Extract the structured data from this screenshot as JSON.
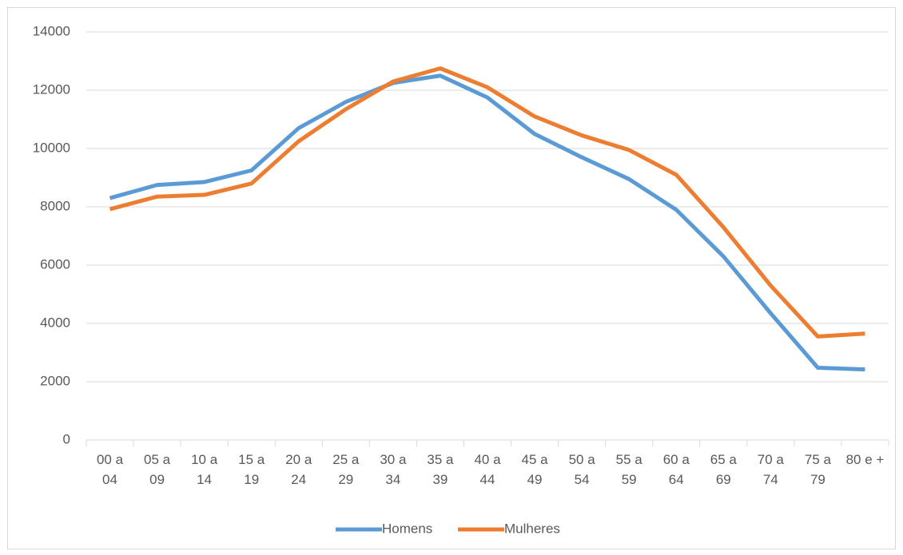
{
  "chart_data": {
    "type": "line",
    "categories": [
      "00 a 04",
      "05 a 09",
      "10 a 14",
      "15 a 19",
      "20 a 24",
      "25 a 29",
      "30 a 34",
      "35 a 39",
      "40 a 44",
      "45 a 49",
      "50 a 54",
      "55 a 59",
      "60 a 64",
      "65 a 69",
      "70 a 74",
      "75 a 79",
      "80 e +"
    ],
    "series": [
      {
        "name": "Homens",
        "color": "#5b9bd5",
        "values": [
          8300,
          8750,
          8850,
          9250,
          10700,
          11600,
          12250,
          12500,
          11750,
          10500,
          9700,
          8950,
          7900,
          6300,
          4350,
          2480,
          2420
        ]
      },
      {
        "name": "Mulheres",
        "color": "#ed7d31",
        "values": [
          7920,
          8350,
          8410,
          8800,
          10250,
          11350,
          12300,
          12750,
          12100,
          11100,
          10450,
          9950,
          9100,
          7300,
          5300,
          3550,
          3650
        ]
      }
    ],
    "ylim": [
      0,
      14000
    ],
    "yticks": [
      0,
      2000,
      4000,
      6000,
      8000,
      10000,
      12000,
      14000
    ],
    "grid": true,
    "legend": "bottom"
  }
}
